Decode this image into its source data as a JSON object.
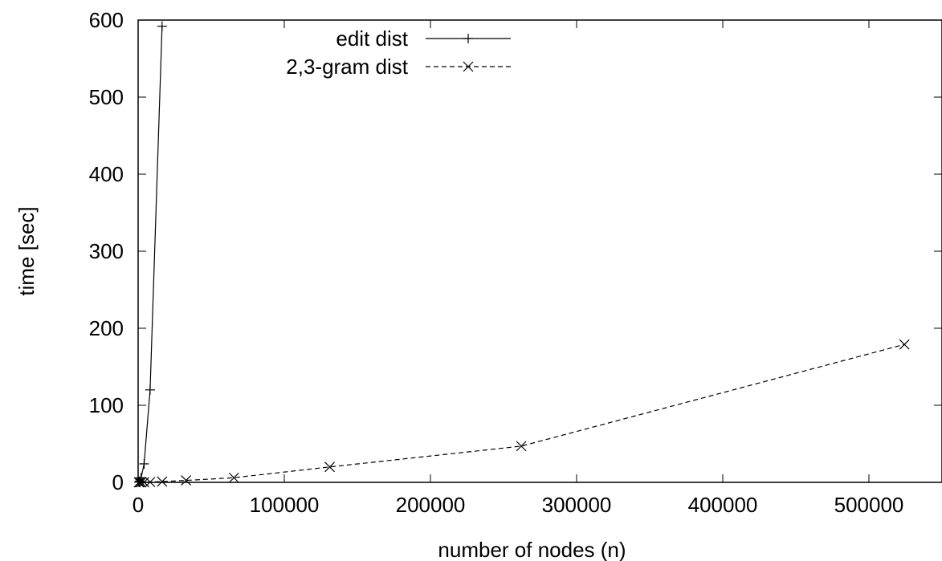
{
  "chart_data": {
    "type": "line",
    "title": "",
    "xlabel": "number of nodes (n)",
    "ylabel": "time [sec]",
    "xlim": [
      0,
      550000
    ],
    "ylim": [
      0,
      600
    ],
    "x_ticks": [
      0,
      100000,
      200000,
      300000,
      400000,
      500000
    ],
    "x_tick_labels": [
      "0",
      "100000",
      "200000",
      "300000",
      "400000",
      "500000"
    ],
    "y_ticks": [
      0,
      100,
      200,
      300,
      400,
      500,
      600
    ],
    "y_tick_labels": [
      "0",
      "100",
      "200",
      "300",
      "400",
      "500",
      "600"
    ],
    "grid": false,
    "legend_position": "top-left",
    "series": [
      {
        "name": "edit dist",
        "marker": "plus",
        "line_style": "solid",
        "color": "#000000",
        "x": [
          512,
          1024,
          2048,
          4096,
          8192,
          16384
        ],
        "y": [
          0.3,
          1.5,
          6,
          24,
          120,
          592
        ]
      },
      {
        "name": "2,3-gram dist",
        "marker": "cross",
        "line_style": "dashed",
        "color": "#000000",
        "x": [
          512,
          1024,
          2048,
          4096,
          8192,
          16384,
          32768,
          65536,
          131072,
          262144,
          524288
        ],
        "y": [
          0.01,
          0.03,
          0.06,
          0.15,
          0.4,
          1,
          2.5,
          6,
          20,
          47,
          179
        ]
      }
    ]
  }
}
